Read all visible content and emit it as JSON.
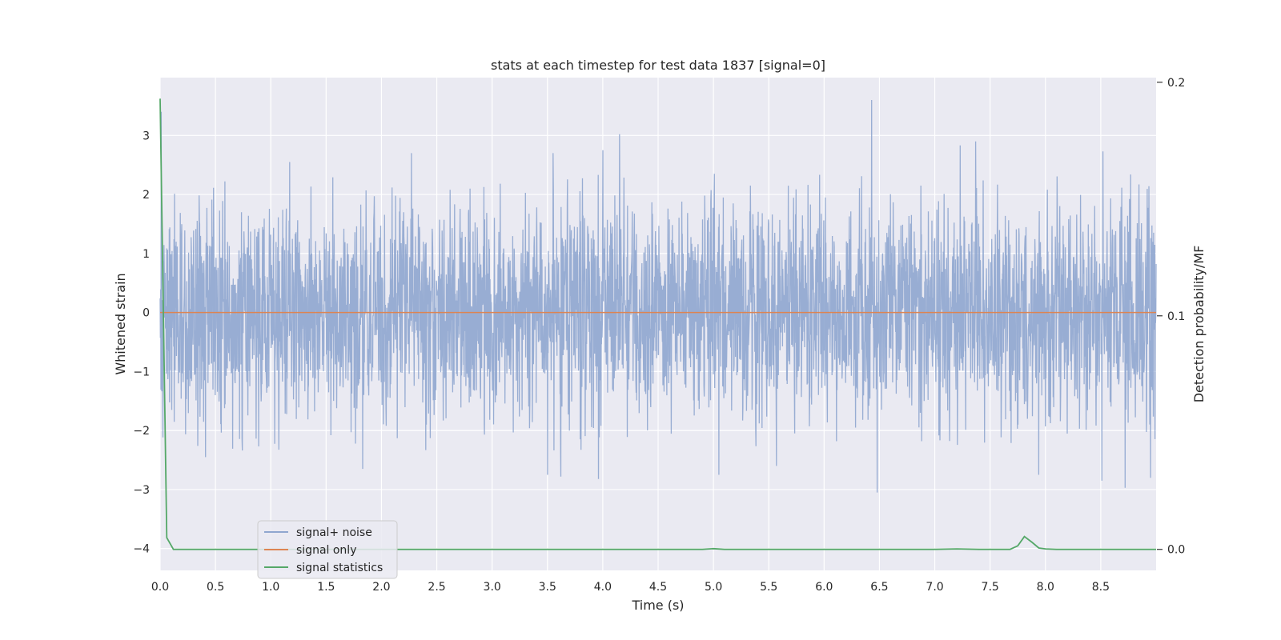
{
  "chart_data": {
    "type": "line",
    "title": "stats at each timestep for test data 1837 [signal=0]",
    "xlabel": "Time (s)",
    "ylabel": "Whitened strain",
    "ylabel_right": "Detection probability/MF",
    "xlim": [
      0.0,
      9.0
    ],
    "ylim": [
      -4.37,
      3.98
    ],
    "ylim_right": [
      -0.009,
      0.202
    ],
    "x_ticks": [
      "0.0",
      "0.5",
      "1.0",
      "1.5",
      "2.0",
      "2.5",
      "3.0",
      "3.5",
      "4.0",
      "4.5",
      "5.0",
      "5.5",
      "6.0",
      "6.5",
      "7.0",
      "7.5",
      "8.0",
      "8.5"
    ],
    "y_ticks": [
      "−4",
      "−3",
      "−2",
      "−1",
      "0",
      "1",
      "2",
      "3"
    ],
    "y_ticks_right": [
      "0.0",
      "0.1",
      "0.2"
    ],
    "grid": true,
    "legend_position": "lower-left",
    "colors": {
      "background": "#eaeaf2",
      "grid": "#ffffff",
      "noise": "#8fa6cf",
      "signal": "#dd8452",
      "stats": "#55a868"
    },
    "series": [
      {
        "name": "signal+ noise",
        "axis": "left",
        "description_values": "dense noise, mostly within [-2.5, 2.5]",
        "peaks": [
          {
            "x": 0.01,
            "y": 3.4
          },
          {
            "x": 0.41,
            "y": 2.55
          },
          {
            "x": 1.17,
            "y": 2.55
          },
          {
            "x": 2.27,
            "y": 2.7
          },
          {
            "x": 3.55,
            "y": 2.7
          },
          {
            "x": 4.0,
            "y": 2.75
          },
          {
            "x": 4.15,
            "y": 3.02
          },
          {
            "x": 6.43,
            "y": 3.6
          },
          {
            "x": 7.23,
            "y": 2.83
          },
          {
            "x": 7.37,
            "y": 2.9
          },
          {
            "x": 8.52,
            "y": 2.73
          }
        ],
        "troughs": [
          {
            "x": 0.41,
            "y": -2.45
          },
          {
            "x": 1.83,
            "y": -2.65
          },
          {
            "x": 3.5,
            "y": -2.75
          },
          {
            "x": 3.62,
            "y": -2.78
          },
          {
            "x": 3.96,
            "y": -2.82
          },
          {
            "x": 5.05,
            "y": -2.75
          },
          {
            "x": 5.57,
            "y": -2.6
          },
          {
            "x": 6.48,
            "y": -3.05
          },
          {
            "x": 7.94,
            "y": -2.75
          },
          {
            "x": 8.51,
            "y": -2.85
          },
          {
            "x": 8.72,
            "y": -2.97
          },
          {
            "x": 8.95,
            "y": -2.8
          }
        ]
      },
      {
        "name": "signal only",
        "axis": "left",
        "x": [
          0.0,
          9.0
        ],
        "y": [
          0.0,
          0.0
        ]
      },
      {
        "name": "signal statistics",
        "axis": "right",
        "x": [
          0.0,
          0.06,
          0.12,
          0.5,
          1.0,
          2.0,
          3.0,
          4.0,
          4.9,
          5.0,
          5.1,
          6.0,
          7.0,
          7.2,
          7.4,
          7.68,
          7.75,
          7.81,
          7.88,
          7.94,
          8.0,
          8.1,
          8.5,
          9.0
        ],
        "y": [
          0.193,
          0.005,
          0.0,
          0.0,
          0.0,
          0.0,
          0.0,
          0.0,
          0.0,
          0.0003,
          0.0,
          0.0,
          0.0,
          0.0002,
          0.0,
          0.0,
          0.0015,
          0.0055,
          0.003,
          0.0006,
          0.0002,
          0.0,
          0.0,
          0.0
        ]
      }
    ]
  }
}
